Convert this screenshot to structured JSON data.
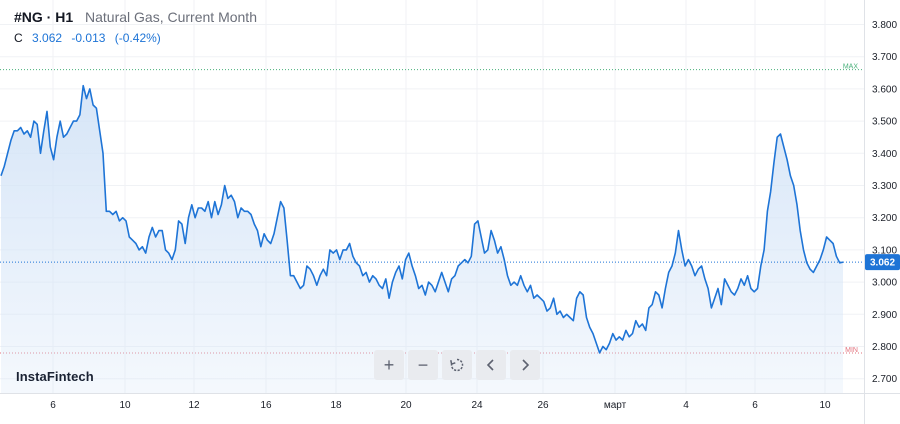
{
  "header": {
    "symbol": "#NG · H1",
    "name": "Natural Gas, Current Month",
    "c_label": "C",
    "close": "3.062",
    "change": "-0.013",
    "change_pct": "(-0.42%)"
  },
  "brand": "InstaFintech",
  "toolbar": {
    "buttons": [
      {
        "icon": "plus-icon",
        "glyph": "+"
      },
      {
        "icon": "minus-icon",
        "glyph": "−"
      },
      {
        "icon": "reset-icon",
        "glyph": ""
      },
      {
        "icon": "chevron-left-icon",
        "glyph": ""
      },
      {
        "icon": "chevron-right-icon",
        "glyph": ""
      }
    ]
  },
  "colors": {
    "line": "#1e74d6",
    "fill": "#d4e4f7",
    "max_line": "#48b07a",
    "min_line": "#e2707b",
    "last_price": "#1e74d6"
  },
  "chart_data": {
    "type": "area",
    "ylim": [
      2.65,
      3.85
    ],
    "y_ticks": [
      "3.800",
      "3.700",
      "3.600",
      "3.500",
      "3.400",
      "3.300",
      "3.200",
      "3.100",
      "3.000",
      "2.900",
      "2.800",
      "2.700"
    ],
    "x_ticks": [
      "6",
      "10",
      "12",
      "16",
      "18",
      "20",
      "24",
      "26",
      "март",
      "4",
      "6",
      "10"
    ],
    "max_label": "MAX",
    "min_label": "MIN",
    "max_value": 3.66,
    "min_value": 2.78,
    "last_value": 3.062,
    "last_label": "3.062",
    "series": [
      {
        "values": [
          3.33,
          3.36,
          3.4,
          3.44,
          3.47,
          3.47,
          3.48,
          3.46,
          3.47,
          3.45,
          3.5,
          3.49,
          3.4,
          3.47,
          3.53,
          3.42,
          3.38,
          3.45,
          3.5,
          3.45,
          3.46,
          3.48,
          3.5,
          3.5,
          3.52,
          3.61,
          3.57,
          3.6,
          3.55,
          3.54,
          3.47,
          3.4,
          3.22,
          3.22,
          3.21,
          3.22,
          3.19,
          3.2,
          3.19,
          3.14,
          3.13,
          3.12,
          3.1,
          3.11,
          3.09,
          3.14,
          3.17,
          3.14,
          3.16,
          3.16,
          3.1,
          3.09,
          3.07,
          3.1,
          3.19,
          3.18,
          3.12,
          3.2,
          3.24,
          3.2,
          3.23,
          3.23,
          3.22,
          3.25,
          3.2,
          3.25,
          3.21,
          3.24,
          3.3,
          3.26,
          3.27,
          3.25,
          3.2,
          3.23,
          3.22,
          3.22,
          3.21,
          3.18,
          3.16,
          3.11,
          3.15,
          3.13,
          3.12,
          3.15,
          3.2,
          3.25,
          3.23,
          3.13,
          3.02,
          3.02,
          3.0,
          2.98,
          2.99,
          3.05,
          3.04,
          3.02,
          2.99,
          3.02,
          3.04,
          3.02,
          3.1,
          3.09,
          3.1,
          3.07,
          3.1,
          3.1,
          3.12,
          3.08,
          3.06,
          3.05,
          3.02,
          3.03,
          3.0,
          3.02,
          3.01,
          2.99,
          2.98,
          3.01,
          2.95,
          3.0,
          3.03,
          3.05,
          3.01,
          3.07,
          3.09,
          3.05,
          3.02,
          2.98,
          2.99,
          2.96,
          3.0,
          2.99,
          2.97,
          3.0,
          3.03,
          3.0,
          2.97,
          3.01,
          3.02,
          3.05,
          3.06,
          3.07,
          3.06,
          3.08,
          3.18,
          3.19,
          3.14,
          3.09,
          3.1,
          3.16,
          3.13,
          3.09,
          3.11,
          3.07,
          3.02,
          2.99,
          3.0,
          2.99,
          3.02,
          2.99,
          2.97,
          2.99,
          2.95,
          2.96,
          2.95,
          2.94,
          2.91,
          2.92,
          2.95,
          2.9,
          2.91,
          2.89,
          2.9,
          2.89,
          2.88,
          2.95,
          2.97,
          2.96,
          2.89,
          2.86,
          2.84,
          2.81,
          2.78,
          2.8,
          2.79,
          2.81,
          2.84,
          2.82,
          2.83,
          2.82,
          2.85,
          2.83,
          2.84,
          2.88,
          2.86,
          2.87,
          2.85,
          2.92,
          2.93,
          2.97,
          2.96,
          2.92,
          2.98,
          3.03,
          3.05,
          3.09,
          3.16,
          3.1,
          3.05,
          3.07,
          3.05,
          3.02,
          3.04,
          3.05,
          3.01,
          2.98,
          2.92,
          2.95,
          2.98,
          2.93,
          3.01,
          2.99,
          2.97,
          2.96,
          2.98,
          3.01,
          2.99,
          3.02,
          2.98,
          2.97,
          2.98,
          3.05,
          3.1,
          3.22,
          3.28,
          3.37,
          3.45,
          3.46,
          3.42,
          3.38,
          3.33,
          3.3,
          3.24,
          3.16,
          3.1,
          3.06,
          3.04,
          3.03,
          3.05,
          3.07,
          3.1,
          3.14,
          3.13,
          3.12,
          3.08,
          3.06,
          3.062
        ],
        "name": ""
      }
    ]
  }
}
